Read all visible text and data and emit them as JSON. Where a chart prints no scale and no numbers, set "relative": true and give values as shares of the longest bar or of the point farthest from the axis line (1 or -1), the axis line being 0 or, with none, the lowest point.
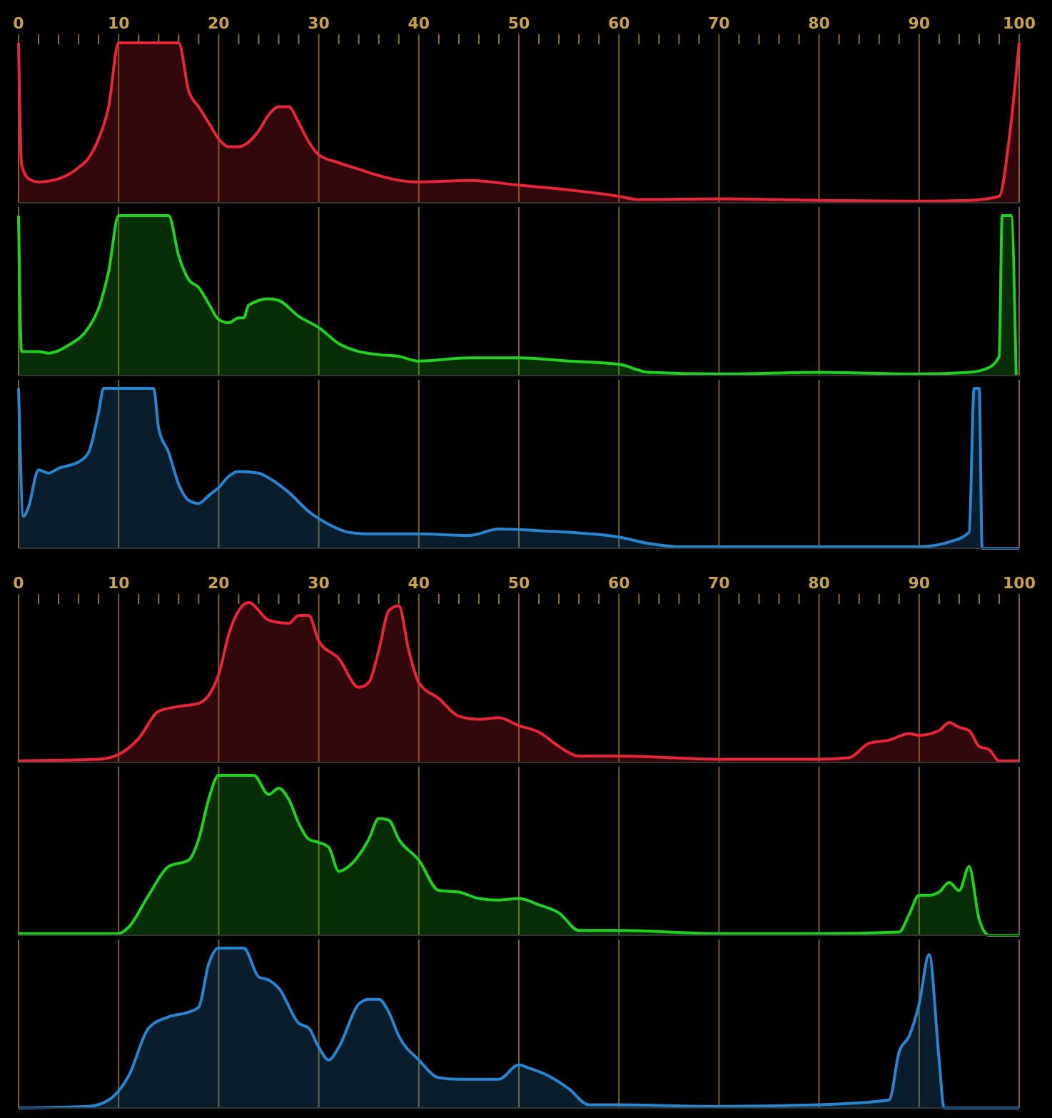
{
  "chart_data": [
    {
      "type": "area",
      "relative": true,
      "xlim": [
        0,
        100
      ],
      "xticks": [
        0,
        {
          "value": 2,
          "label": null
        },
        {
          "value": 4,
          "label": null
        },
        {
          "value": 6,
          "label": null
        },
        {
          "value": 8,
          "label": null
        },
        10,
        {
          "value": 12,
          "label": null
        },
        {
          "value": 14,
          "label": null
        },
        {
          "value": 16,
          "label": null
        },
        {
          "value": 18,
          "label": null
        },
        20,
        {
          "value": 22,
          "label": null
        },
        {
          "value": 24,
          "label": null
        },
        {
          "value": 26,
          "label": null
        },
        {
          "value": 28,
          "label": null
        },
        30,
        {
          "value": 32,
          "label": null
        },
        {
          "value": 34,
          "label": null
        },
        {
          "value": 36,
          "label": null
        },
        {
          "value": 38,
          "label": null
        },
        40,
        {
          "value": 42,
          "label": null
        },
        {
          "value": 44,
          "label": null
        },
        {
          "value": 46,
          "label": null
        },
        {
          "value": 48,
          "label": null
        },
        50,
        {
          "value": 52,
          "label": null
        },
        {
          "value": 54,
          "label": null
        },
        {
          "value": 56,
          "label": null
        },
        {
          "value": 58,
          "label": null
        },
        60,
        {
          "value": 62,
          "label": null
        },
        {
          "value": 64,
          "label": null
        },
        {
          "value": 66,
          "label": null
        },
        {
          "value": 68,
          "label": null
        },
        70,
        {
          "value": 72,
          "label": null
        },
        {
          "value": 74,
          "label": null
        },
        {
          "value": 76,
          "label": null
        },
        {
          "value": 78,
          "label": null
        },
        80,
        {
          "value": 82,
          "label": null
        },
        {
          "value": 84,
          "label": null
        },
        {
          "value": 86,
          "label": null
        },
        {
          "value": 88,
          "label": null
        },
        90,
        {
          "value": 92,
          "label": null
        },
        {
          "value": 94,
          "label": null
        },
        {
          "value": 96,
          "label": null
        },
        {
          "value": 98,
          "label": null
        },
        100
      ],
      "grid": "x",
      "tick_labels": "x",
      "series": [
        {
          "color": "#e8263a",
          "x": [
            0,
            0.3,
            1,
            2,
            4,
            6,
            7,
            8,
            9,
            10,
            16,
            17,
            18,
            19,
            20,
            21,
            22,
            23,
            24,
            25,
            26,
            27,
            28,
            29,
            30,
            32,
            34,
            36,
            38,
            40,
            45,
            50,
            55,
            60,
            62,
            70,
            80,
            90,
            95,
            98,
            99,
            100
          ],
          "values": [
            1,
            0.24,
            0.15,
            0.13,
            0.15,
            0.22,
            0.28,
            0.4,
            0.6,
            1,
            1,
            0.7,
            0.6,
            0.5,
            0.4,
            0.35,
            0.35,
            0.38,
            0.45,
            0.55,
            0.6,
            0.6,
            0.5,
            0.38,
            0.3,
            0.25,
            0.21,
            0.17,
            0.14,
            0.13,
            0.14,
            0.11,
            0.08,
            0.04,
            0.02,
            0.025,
            0.015,
            0.01,
            0.015,
            0.04,
            0.4,
            1
          ]
        }
      ]
    },
    {
      "type": "area",
      "relative": true,
      "xlim": [
        0,
        100
      ],
      "xticks": [
        0,
        10,
        20,
        30,
        40,
        50,
        60,
        70,
        80,
        90,
        100
      ],
      "grid": "x",
      "tick_labels": false,
      "series": [
        {
          "color": "#22d022",
          "x": [
            0,
            0.3,
            2,
            3,
            5,
            7,
            8,
            9,
            10,
            15,
            16,
            17,
            18,
            19,
            20,
            21,
            22,
            22.5,
            23,
            25,
            26,
            28,
            30,
            32,
            34,
            36,
            38,
            40,
            45,
            50,
            55,
            60,
            63,
            70,
            80,
            90,
            95,
            97,
            98,
            98.3,
            99.2,
            99.7
          ],
          "values": [
            1,
            0.15,
            0.15,
            0.14,
            0.19,
            0.3,
            0.42,
            0.65,
            1,
            1,
            0.75,
            0.6,
            0.55,
            0.45,
            0.35,
            0.33,
            0.36,
            0.36,
            0.44,
            0.48,
            0.47,
            0.37,
            0.3,
            0.2,
            0.15,
            0.13,
            0.12,
            0.09,
            0.11,
            0.11,
            0.09,
            0.07,
            0.02,
            0.01,
            0.02,
            0.01,
            0.02,
            0.05,
            0.12,
            1,
            1,
            0
          ]
        }
      ]
    },
    {
      "type": "area",
      "relative": true,
      "xlim": [
        0,
        100
      ],
      "xticks": [
        0,
        10,
        20,
        30,
        40,
        50,
        60,
        70,
        80,
        90,
        100
      ],
      "grid": "x",
      "tick_labels": false,
      "series": [
        {
          "color": "#2a85cf",
          "x": [
            0,
            0.5,
            1,
            2,
            3,
            4,
            6,
            7,
            8,
            8.5,
            13.5,
            14,
            15,
            16,
            17,
            18,
            19,
            20,
            21,
            22,
            24,
            25,
            27,
            29,
            31,
            33,
            35,
            40,
            45,
            48,
            52,
            55,
            60,
            63,
            66,
            80,
            90,
            93,
            95,
            95.5,
            96,
            96.3,
            100
          ],
          "values": [
            1,
            0.2,
            0.26,
            0.49,
            0.47,
            0.5,
            0.54,
            0.6,
            0.85,
            1,
            1,
            0.75,
            0.6,
            0.4,
            0.3,
            0.28,
            0.33,
            0.38,
            0.45,
            0.48,
            0.47,
            0.44,
            0.35,
            0.23,
            0.15,
            0.1,
            0.09,
            0.09,
            0.08,
            0.12,
            0.11,
            0.1,
            0.07,
            0.03,
            0.01,
            0.01,
            0.01,
            0.04,
            0.1,
            1,
            1,
            0,
            0
          ]
        }
      ]
    },
    {
      "type": "area",
      "relative": true,
      "xlim": [
        0,
        100
      ],
      "xticks": [
        0,
        {
          "value": 2,
          "label": null
        },
        {
          "value": 4,
          "label": null
        },
        {
          "value": 6,
          "label": null
        },
        {
          "value": 8,
          "label": null
        },
        10,
        {
          "value": 12,
          "label": null
        },
        {
          "value": 14,
          "label": null
        },
        {
          "value": 16,
          "label": null
        },
        {
          "value": 18,
          "label": null
        },
        20,
        {
          "value": 22,
          "label": null
        },
        {
          "value": 24,
          "label": null
        },
        {
          "value": 26,
          "label": null
        },
        {
          "value": 28,
          "label": null
        },
        30,
        {
          "value": 32,
          "label": null
        },
        {
          "value": 34,
          "label": null
        },
        {
          "value": 36,
          "label": null
        },
        {
          "value": 38,
          "label": null
        },
        40,
        {
          "value": 42,
          "label": null
        },
        {
          "value": 44,
          "label": null
        },
        {
          "value": 46,
          "label": null
        },
        {
          "value": 48,
          "label": null
        },
        50,
        {
          "value": 52,
          "label": null
        },
        {
          "value": 54,
          "label": null
        },
        {
          "value": 56,
          "label": null
        },
        {
          "value": 58,
          "label": null
        },
        60,
        {
          "value": 62,
          "label": null
        },
        {
          "value": 64,
          "label": null
        },
        {
          "value": 66,
          "label": null
        },
        {
          "value": 68,
          "label": null
        },
        70,
        {
          "value": 72,
          "label": null
        },
        {
          "value": 74,
          "label": null
        },
        {
          "value": 76,
          "label": null
        },
        {
          "value": 78,
          "label": null
        },
        80,
        {
          "value": 82,
          "label": null
        },
        {
          "value": 84,
          "label": null
        },
        {
          "value": 86,
          "label": null
        },
        {
          "value": 88,
          "label": null
        },
        90,
        {
          "value": 92,
          "label": null
        },
        {
          "value": 94,
          "label": null
        },
        {
          "value": 96,
          "label": null
        },
        {
          "value": 98,
          "label": null
        },
        100
      ],
      "grid": "x",
      "tick_labels": "x",
      "series": [
        {
          "color": "#e8263a",
          "x": [
            0,
            8,
            10,
            12,
            14,
            16,
            18,
            19,
            20,
            21,
            22,
            23,
            25,
            27,
            28,
            29,
            30,
            32,
            34,
            35,
            36,
            37,
            38,
            39,
            40,
            42,
            44,
            46,
            48,
            50,
            52,
            54,
            56,
            60,
            70,
            80,
            83,
            85,
            87,
            89,
            90,
            92,
            93,
            94,
            95,
            96,
            97,
            98,
            100
          ],
          "values": [
            0.01,
            0.02,
            0.05,
            0.15,
            0.32,
            0.35,
            0.37,
            0.42,
            0.55,
            0.8,
            0.95,
            1,
            0.89,
            0.87,
            0.92,
            0.92,
            0.76,
            0.65,
            0.47,
            0.5,
            0.7,
            0.95,
            0.98,
            0.7,
            0.5,
            0.4,
            0.29,
            0.27,
            0.28,
            0.23,
            0.19,
            0.1,
            0.04,
            0.04,
            0.02,
            0.02,
            0.03,
            0.12,
            0.14,
            0.18,
            0.17,
            0.2,
            0.25,
            0.22,
            0.2,
            0.1,
            0.08,
            0.01,
            0.01
          ]
        }
      ]
    },
    {
      "type": "area",
      "relative": true,
      "xlim": [
        0,
        100
      ],
      "xticks": [
        0,
        10,
        20,
        30,
        40,
        50,
        60,
        70,
        80,
        90,
        100
      ],
      "grid": "x",
      "tick_labels": false,
      "series": [
        {
          "color": "#22d022",
          "x": [
            0,
            10,
            11,
            13,
            15,
            17,
            18,
            19,
            20,
            23.5,
            25,
            26,
            27,
            28,
            29,
            30,
            31,
            32,
            33,
            35,
            36,
            37,
            38,
            40,
            42,
            44,
            46,
            48,
            50,
            52,
            54,
            56,
            60,
            70,
            80,
            88,
            89,
            90,
            91,
            92,
            93,
            94,
            95,
            96,
            97,
            100
          ],
          "values": [
            0.01,
            0.01,
            0.05,
            0.25,
            0.43,
            0.47,
            0.6,
            0.85,
            1,
            1,
            0.88,
            0.92,
            0.85,
            0.7,
            0.6,
            0.58,
            0.55,
            0.4,
            0.43,
            0.6,
            0.73,
            0.72,
            0.6,
            0.47,
            0.28,
            0.27,
            0.23,
            0.22,
            0.23,
            0.19,
            0.14,
            0.03,
            0.03,
            0.01,
            0.01,
            0.02,
            0.13,
            0.25,
            0.25,
            0.27,
            0.33,
            0.28,
            0.43,
            0.1,
            0,
            0
          ]
        }
      ]
    },
    {
      "type": "area",
      "relative": true,
      "xlim": [
        0,
        100
      ],
      "xticks": [
        0,
        10,
        20,
        30,
        40,
        50,
        60,
        70,
        80,
        90,
        100
      ],
      "grid": "x",
      "tick_labels": false,
      "series": [
        {
          "color": "#2a85cf",
          "x": [
            0,
            7,
            9,
            11,
            13,
            15,
            17,
            18,
            19,
            20,
            22.5,
            24,
            25,
            26,
            28,
            29,
            30,
            31,
            32,
            34,
            35,
            36,
            37,
            38,
            40,
            42,
            44,
            48,
            50,
            51,
            53,
            55,
            57,
            60,
            70,
            80,
            87,
            88,
            89,
            90,
            91,
            92,
            92.5,
            100
          ],
          "values": [
            0,
            0.01,
            0.05,
            0.2,
            0.5,
            0.57,
            0.6,
            0.63,
            0.9,
            1,
            1,
            0.82,
            0.8,
            0.75,
            0.53,
            0.5,
            0.38,
            0.3,
            0.38,
            0.65,
            0.68,
            0.68,
            0.6,
            0.45,
            0.3,
            0.19,
            0.18,
            0.18,
            0.27,
            0.25,
            0.2,
            0.12,
            0.02,
            0.02,
            0.01,
            0.02,
            0.05,
            0.35,
            0.45,
            0.65,
            0.96,
            0.3,
            0,
            0
          ]
        }
      ]
    }
  ]
}
